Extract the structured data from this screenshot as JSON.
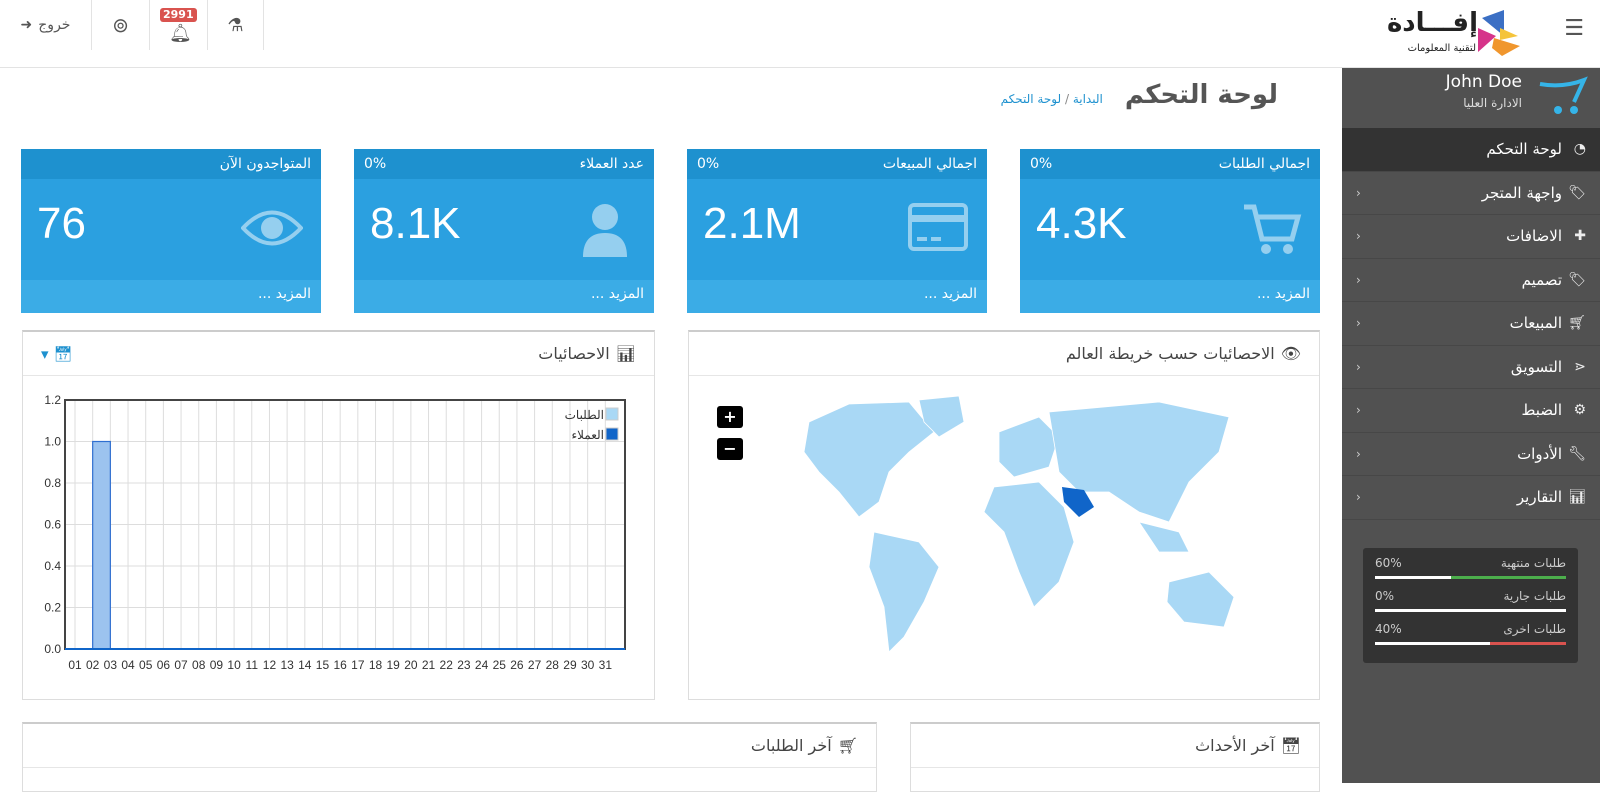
{
  "header": {
    "logout_label": "خروج",
    "notification_count": "2991",
    "logo_title": "إفـــادة",
    "logo_subtitle": "لتقنية المعلومات"
  },
  "sidebar": {
    "user_name": "John Doe",
    "user_role": "الادارة العليا",
    "items": [
      {
        "label": "لوحة التحكم",
        "icon": "dashboard-icon",
        "active": true
      },
      {
        "label": "واجهة المتجر",
        "icon": "tags-icon"
      },
      {
        "label": "الاضافات",
        "icon": "puzzle-icon"
      },
      {
        "label": "تصميم",
        "icon": "tag-icon"
      },
      {
        "label": "المبيعات",
        "icon": "cart-icon"
      },
      {
        "label": "التسويق",
        "icon": "share-icon"
      },
      {
        "label": "الضبط",
        "icon": "gear-icon"
      },
      {
        "label": "الأدوات",
        "icon": "wrench-icon"
      },
      {
        "label": "التقارير",
        "icon": "bar-chart-icon"
      }
    ],
    "progress": [
      {
        "label": "طلبات منتهية",
        "value": "60%",
        "percent": 60,
        "color": "#4cae4c"
      },
      {
        "label": "طلبات جارية",
        "value": "0%",
        "percent": 0,
        "color": "#fff"
      },
      {
        "label": "طلبات اخرى",
        "value": "40%",
        "percent": 40,
        "color": "#d9534f"
      }
    ]
  },
  "page": {
    "title": "لوحة التحكم",
    "breadcrumb": [
      "البداية",
      "لوحة التحكم"
    ]
  },
  "cards": [
    {
      "title": "اجمالي الطلبات",
      "percent": "0%",
      "value": "4.3K",
      "more": "المزيد ...",
      "icon": "cart-icon"
    },
    {
      "title": "اجمالي المبيعات",
      "percent": "0%",
      "value": "2.1M",
      "more": "المزيد ...",
      "icon": "credit-card-icon"
    },
    {
      "title": "عدد العملاء",
      "percent": "0%",
      "value": "8.1K",
      "more": "المزيد ...",
      "icon": "user-icon"
    },
    {
      "title": "المتواجدون الآن",
      "percent": "",
      "value": "76",
      "more": "المزيد ...",
      "icon": "eye-icon"
    }
  ],
  "map_panel": {
    "title": "الاحصائيات حسب خريطة العالم",
    "zoom_in": "+",
    "zoom_out": "−"
  },
  "chart_panel": {
    "title": "الاحصائيات"
  },
  "chart_data": {
    "type": "bar",
    "categories": [
      "01",
      "02",
      "03",
      "04",
      "05",
      "06",
      "07",
      "08",
      "09",
      "10",
      "11",
      "12",
      "13",
      "14",
      "15",
      "16",
      "17",
      "18",
      "19",
      "20",
      "21",
      "22",
      "23",
      "24",
      "25",
      "26",
      "27",
      "28",
      "29",
      "30",
      "31"
    ],
    "series": [
      {
        "name": "الطلبات",
        "color": "#a9d8f5",
        "values": [
          0,
          0,
          0,
          0,
          0,
          0,
          0,
          0,
          0,
          0,
          0,
          0,
          0,
          0,
          0,
          0,
          0,
          0,
          0,
          0,
          0,
          0,
          0,
          0,
          0,
          0,
          0,
          0,
          0,
          0,
          0
        ]
      },
      {
        "name": "العملاء",
        "color": "#1065c9",
        "values": [
          0,
          1,
          0,
          0,
          0,
          0,
          0,
          0,
          0,
          0,
          0,
          0,
          0,
          0,
          0,
          0,
          0,
          0,
          0,
          0,
          0,
          0,
          0,
          0,
          0,
          0,
          0,
          0,
          0,
          0,
          0
        ]
      }
    ],
    "ylim": [
      0,
      1.2
    ],
    "yticks": [
      "0.0",
      "0.2",
      "0.4",
      "0.6",
      "0.8",
      "1.0",
      "1.2"
    ],
    "grid": true,
    "legend": "top-right"
  },
  "orders_panel": {
    "title": "آخر الطلبات"
  },
  "events_panel": {
    "title": "آخر الأحداث"
  }
}
